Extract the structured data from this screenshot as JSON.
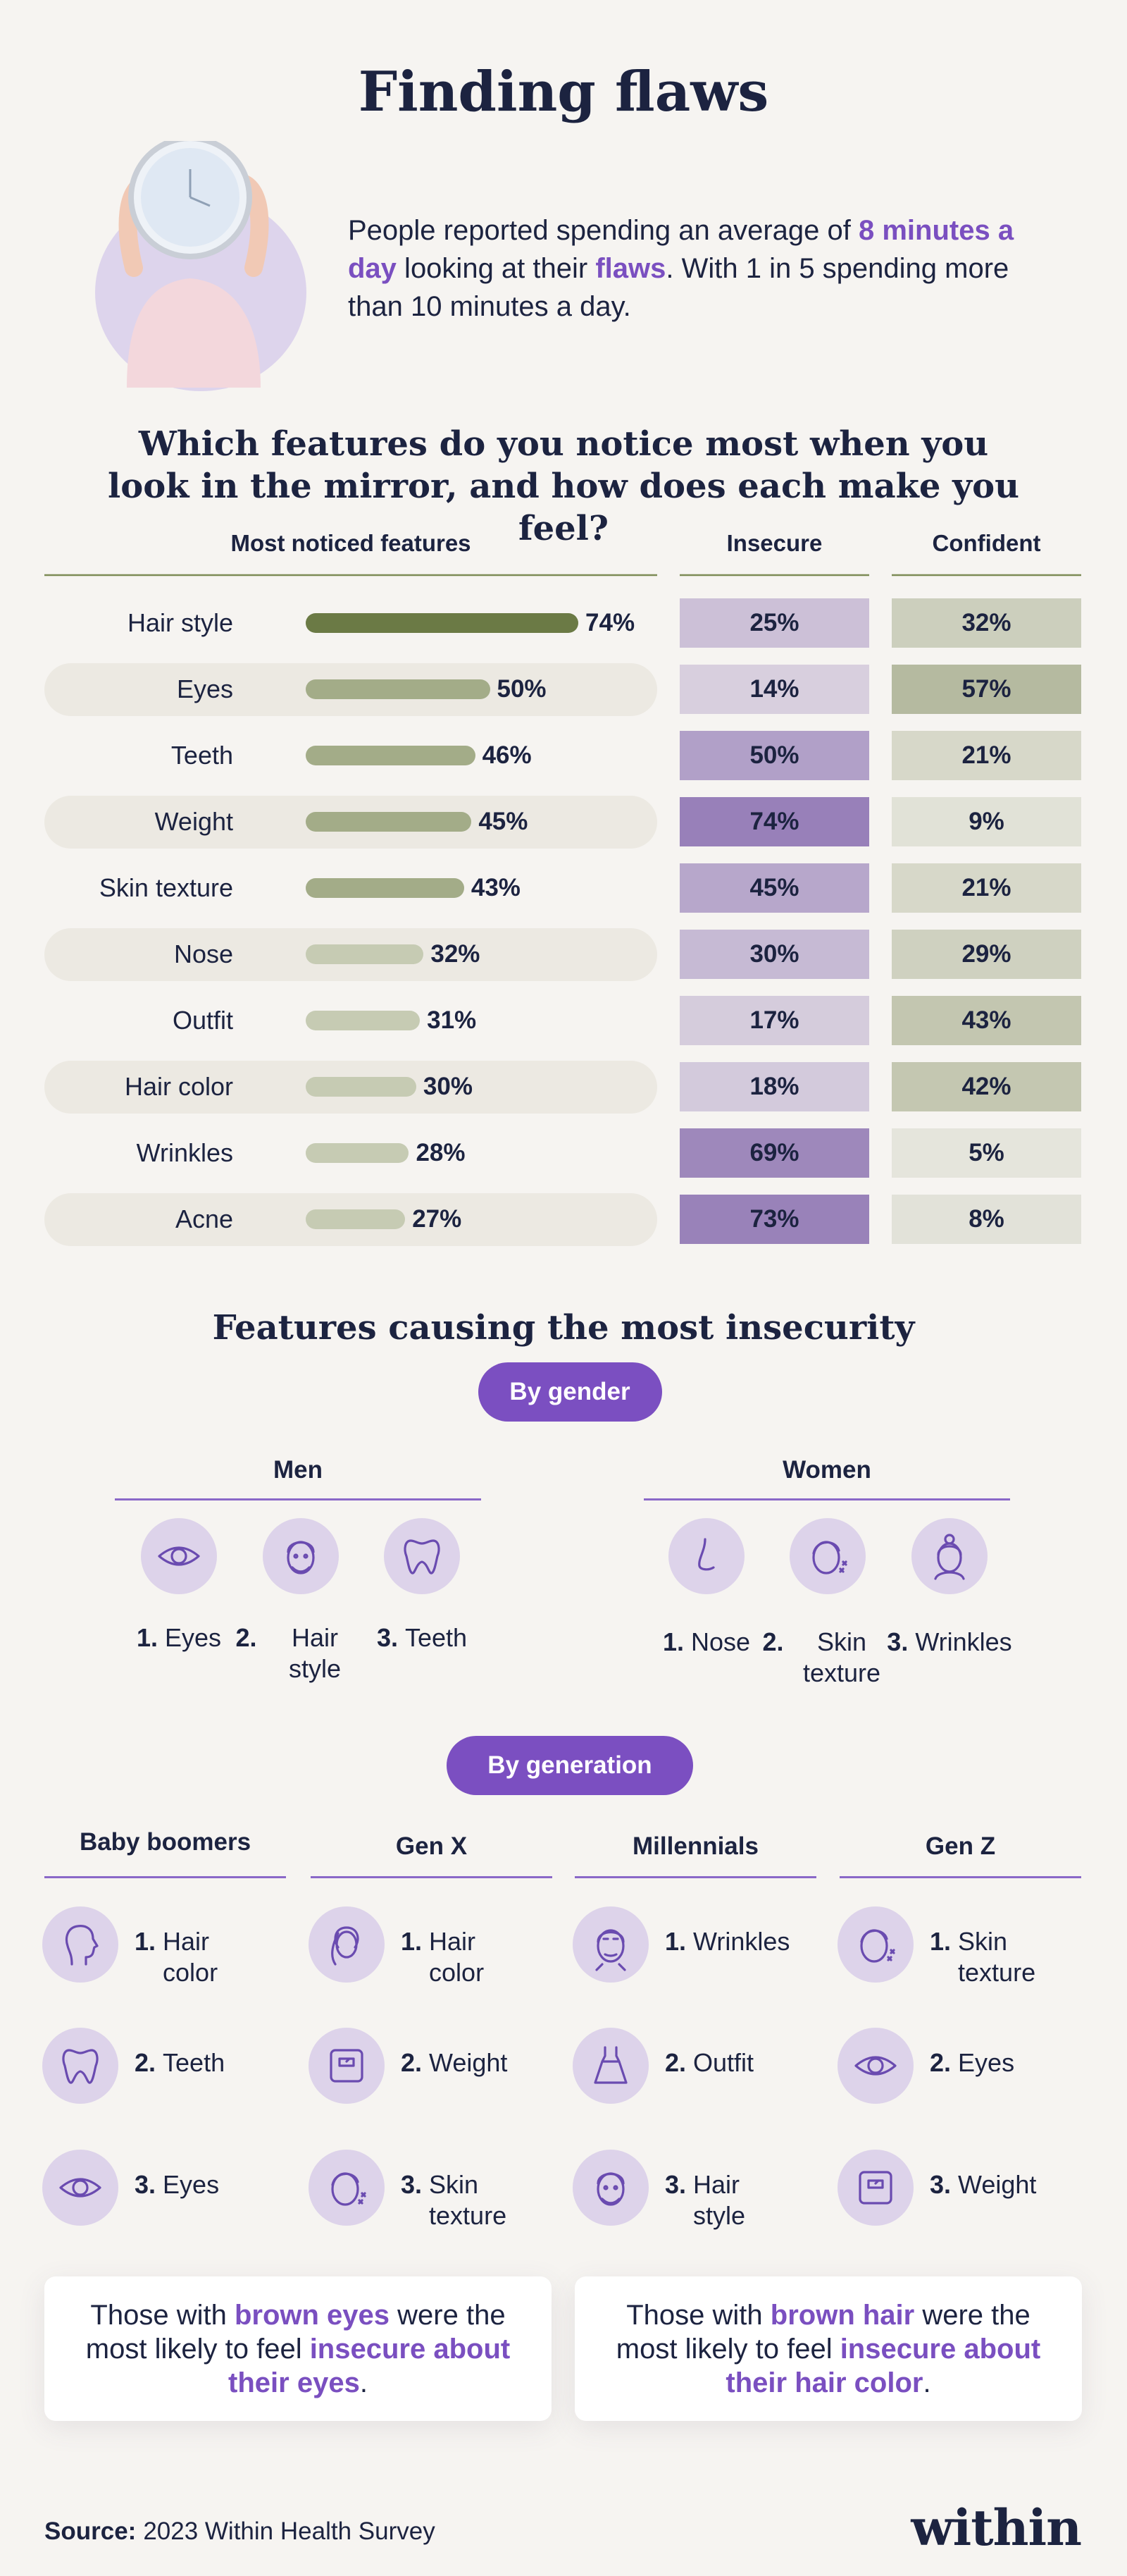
{
  "header": {
    "title": "Finding flaws",
    "intro": [
      {
        "text": "People reported spending an average of ",
        "highlight": false
      },
      {
        "text": "8 minutes a day",
        "highlight": true
      },
      {
        "text": " looking at their ",
        "highlight": false
      },
      {
        "text": "flaws",
        "highlight": true
      },
      {
        "text": ". With 1 in 5 spending more than 10 minutes a day.",
        "highlight": false
      }
    ]
  },
  "survey": {
    "title": "Which features do you notice most when you look in the mirror, and how does each make you feel?",
    "columns": [
      "Most noticed features",
      "Insecure",
      "Confident"
    ],
    "features": [
      "Hair style",
      "Eyes",
      "Teeth",
      "Weight",
      "Skin texture",
      "Nose",
      "Outfit",
      "Hair color",
      "Wrinkles",
      "Acne"
    ],
    "noticed": [
      74,
      50,
      46,
      45,
      43,
      32,
      31,
      30,
      28,
      27
    ],
    "noticed_labels": [
      "74%",
      "50%",
      "46%",
      "45%",
      "43%",
      "32%",
      "31%",
      "30%",
      "28%",
      "27%"
    ],
    "insecure": [
      25,
      14,
      50,
      74,
      45,
      30,
      17,
      18,
      69,
      73
    ],
    "insecure_labels": [
      "25%",
      "14%",
      "50%",
      "74%",
      "45%",
      "30%",
      "17%",
      "18%",
      "69%",
      "73%"
    ],
    "confident": [
      32,
      57,
      21,
      9,
      21,
      29,
      43,
      42,
      5,
      8
    ],
    "confident_labels": [
      "32%",
      "57%",
      "21%",
      "9%",
      "21%",
      "29%",
      "43%",
      "42%",
      "5%",
      "8%"
    ]
  },
  "insecurity": {
    "title": "Features causing the most insecurity",
    "gender": {
      "button": "By gender",
      "groups": [
        {
          "name": "Men",
          "items": [
            {
              "rank": "1.",
              "label": "Eyes"
            },
            {
              "rank": "2.",
              "label": "Hair style"
            },
            {
              "rank": "3.",
              "label": "Teeth"
            }
          ]
        },
        {
          "name": "Women",
          "items": [
            {
              "rank": "1.",
              "label": "Nose"
            },
            {
              "rank": "2.",
              "label": "Skin texture"
            },
            {
              "rank": "3.",
              "label": "Wrinkles"
            }
          ]
        }
      ]
    },
    "generation": {
      "button": "By generation",
      "groups": [
        {
          "name": "Baby boomers",
          "items": [
            {
              "rank": "1.",
              "label": "Hair color"
            },
            {
              "rank": "2.",
              "label": "Teeth"
            },
            {
              "rank": "3.",
              "label": "Eyes"
            }
          ]
        },
        {
          "name": "Gen X",
          "items": [
            {
              "rank": "1.",
              "label": "Hair color"
            },
            {
              "rank": "2.",
              "label": "Weight"
            },
            {
              "rank": "3.",
              "label": "Skin texture"
            }
          ]
        },
        {
          "name": "Millennials",
          "items": [
            {
              "rank": "1.",
              "label": "Wrinkles"
            },
            {
              "rank": "2.",
              "label": "Outfit"
            },
            {
              "rank": "3.",
              "label": "Hair style"
            }
          ]
        },
        {
          "name": "Gen Z",
          "items": [
            {
              "rank": "1.",
              "label": "Skin texture"
            },
            {
              "rank": "2.",
              "label": "Eyes"
            },
            {
              "rank": "3.",
              "label": "Weight"
            }
          ]
        }
      ]
    }
  },
  "callouts": [
    [
      {
        "text": "Those with ",
        "highlight": false
      },
      {
        "text": "brown eyes",
        "highlight": true
      },
      {
        "text": " were the most likely to feel ",
        "highlight": false
      },
      {
        "text": "insecure about their eyes",
        "highlight": true
      },
      {
        "text": ".",
        "highlight": false
      }
    ],
    [
      {
        "text": "Those with ",
        "highlight": false
      },
      {
        "text": "brown hair",
        "highlight": true
      },
      {
        "text": " were the most likely to feel ",
        "highlight": false
      },
      {
        "text": "insecure about their hair color",
        "highlight": true
      },
      {
        "text": ".",
        "highlight": false
      }
    ]
  ],
  "footer": {
    "source_label": "Source:",
    "source": "2023 Within Health Survey",
    "logo": "within"
  }
}
